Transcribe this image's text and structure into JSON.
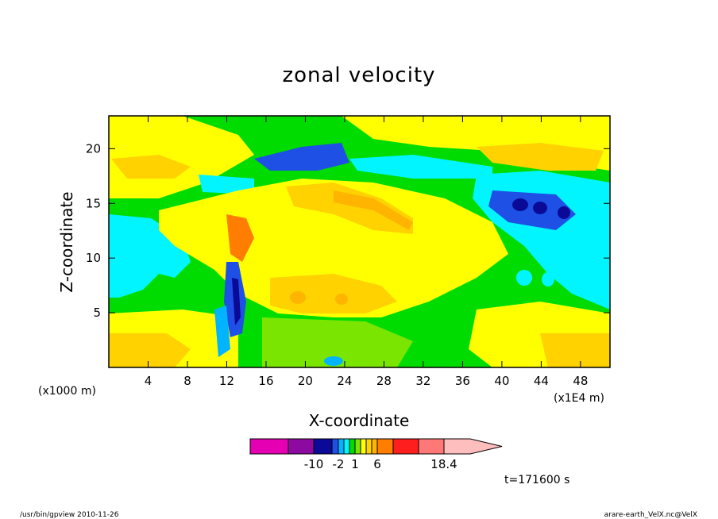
{
  "chart_data": {
    "type": "heatmap",
    "title": "zonal velocity",
    "xlabel": "X-coordinate",
    "ylabel": "Z-coordinate",
    "x_scale_label": "(x1E4 m)",
    "y_scale_label": "(x1000 m)",
    "x_ticks": [
      "4",
      "8",
      "12",
      "16",
      "20",
      "24",
      "28",
      "32",
      "36",
      "40",
      "44",
      "48"
    ],
    "y_ticks": [
      "5",
      "10",
      "15",
      "20"
    ],
    "xlim": [
      0,
      51
    ],
    "ylim": [
      0,
      23
    ],
    "colorbar": {
      "tick_labels": [
        "-10",
        "-2",
        "1",
        "6",
        "18.4"
      ],
      "tick_values": [
        -10,
        -2,
        1,
        6,
        18.4
      ],
      "levels": [
        -16,
        -12,
        -8,
        -4,
        -2,
        -1,
        0,
        1,
        2,
        3,
        4,
        6,
        10,
        14,
        18.4,
        22
      ],
      "colors": [
        "#e600b4",
        "#8c0aa0",
        "#0a0a96",
        "#1e50e6",
        "#00b4ff",
        "#00f5ff",
        "#00dc00",
        "#7ae600",
        "#ffff00",
        "#ffd200",
        "#ffb400",
        "#ff7d00",
        "#ff1e1e",
        "#ff7878",
        "#ffbebe"
      ]
    },
    "time_label": "t=171600 s",
    "grid": false
  },
  "footer": {
    "left": "/usr/bin/gpview   2010-11-26",
    "right": "arare-earth_VelX.nc@VelX"
  }
}
